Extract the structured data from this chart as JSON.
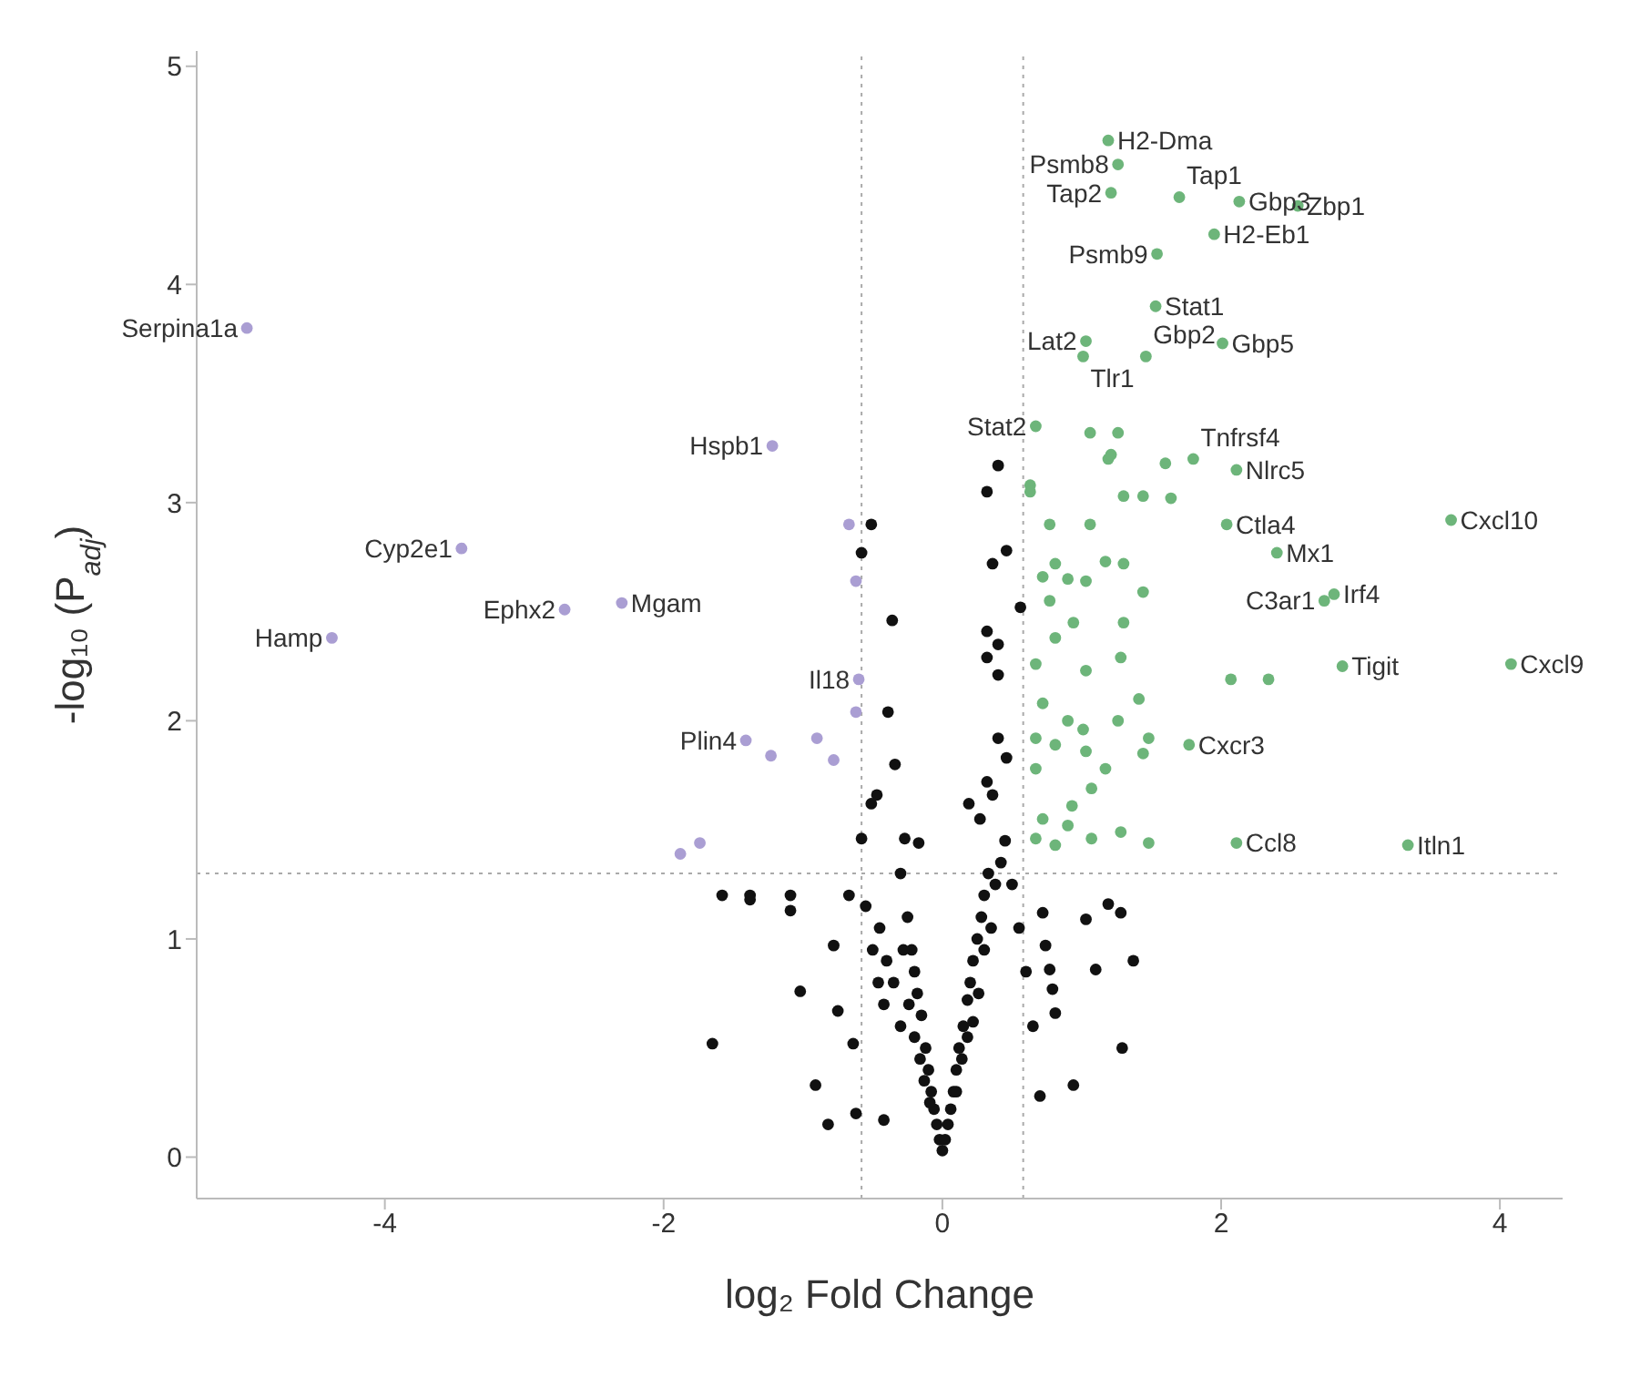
{
  "chart_data": {
    "type": "scatter",
    "xlabel": "log₂ Fold Change",
    "ylabel": "-log₁₀ (P$_{adj}$)",
    "xlim": [
      -5.35,
      4.45
    ],
    "ylim": [
      -0.19,
      5.07
    ],
    "xticks": [
      -4,
      -2,
      0,
      2,
      4
    ],
    "yticks": [
      0,
      1,
      2,
      3,
      4,
      5
    ],
    "grid": false,
    "legend": false,
    "marker": "circle",
    "ref_lines": [
      {
        "axis": "x",
        "value": -0.58,
        "color": "#aaaaaa",
        "line_style": "dotted"
      },
      {
        "axis": "x",
        "value": 0.58,
        "color": "#aaaaaa",
        "line_style": "dotted"
      },
      {
        "axis": "y",
        "value": 1.3,
        "color": "#aaaaaa",
        "line_style": "dotted"
      }
    ],
    "series": [
      {
        "color": "#111111",
        "x": [
          0.4,
          0.32,
          -0.51,
          -0.58,
          0.46,
          0.36,
          -0.36,
          0.32,
          0.4,
          0.56,
          0.32,
          0.4,
          -0.39,
          -0.34,
          -0.47,
          -0.51,
          0.32,
          0.36,
          0.4,
          0.46,
          0.19,
          0.27,
          -0.58,
          -0.27,
          -0.17,
          -1.38,
          -1.09,
          -1.09,
          -1.02,
          -0.91,
          -0.82,
          1.29,
          1.37,
          1.28,
          1.19,
          1.1,
          0.94,
          0.7,
          0.81,
          0.79,
          0.77,
          0.74,
          0.72,
          1.03,
          -0.78,
          -0.75,
          -0.64,
          -0.62,
          -0.42,
          -0.67,
          -1.65,
          -1.58,
          -1.38,
          -0.3,
          -0.25,
          -0.22,
          -0.2,
          -0.18,
          -0.15,
          -0.12,
          -0.1,
          -0.08,
          -0.06,
          -0.04,
          -0.02,
          0.0,
          0.02,
          0.04,
          0.06,
          0.08,
          0.1,
          0.12,
          0.15,
          0.18,
          0.2,
          0.22,
          0.25,
          0.28,
          0.3,
          0.33,
          -0.45,
          -0.4,
          -0.35,
          -0.3,
          -0.28,
          -0.24,
          -0.2,
          -0.16,
          -0.13,
          -0.09,
          0.1,
          0.14,
          0.18,
          0.22,
          0.26,
          0.3,
          0.35,
          0.38,
          0.42,
          0.45,
          -0.55,
          -0.5,
          -0.46,
          -0.42,
          0.5,
          0.55,
          0.6,
          0.65
        ],
        "values": [
          3.17,
          3.05,
          2.9,
          2.77,
          2.78,
          2.72,
          2.46,
          2.41,
          2.35,
          2.52,
          2.29,
          2.21,
          2.04,
          1.8,
          1.66,
          1.62,
          1.72,
          1.66,
          1.92,
          1.83,
          1.62,
          1.55,
          1.46,
          1.46,
          1.44,
          1.2,
          1.2,
          1.13,
          0.76,
          0.33,
          0.15,
          0.5,
          0.9,
          1.12,
          1.16,
          0.86,
          0.33,
          0.28,
          0.66,
          0.77,
          0.86,
          0.97,
          1.12,
          1.09,
          0.97,
          0.67,
          0.52,
          0.2,
          0.17,
          1.2,
          0.52,
          1.2,
          1.18,
          1.3,
          1.1,
          0.95,
          0.85,
          0.75,
          0.65,
          0.5,
          0.4,
          0.3,
          0.22,
          0.15,
          0.08,
          0.03,
          0.08,
          0.15,
          0.22,
          0.3,
          0.4,
          0.5,
          0.6,
          0.72,
          0.8,
          0.9,
          1.0,
          1.1,
          1.2,
          1.3,
          1.05,
          0.9,
          0.8,
          0.6,
          0.95,
          0.7,
          0.55,
          0.45,
          0.35,
          0.25,
          0.3,
          0.45,
          0.55,
          0.62,
          0.75,
          0.95,
          1.05,
          1.25,
          1.35,
          1.45,
          1.15,
          0.95,
          0.8,
          0.7,
          1.25,
          1.05,
          0.85,
          0.6
        ]
      },
      {
        "color": "#aa9ed3",
        "x": [
          -4.99,
          -1.22,
          -3.45,
          -2.3,
          -2.71,
          -4.38,
          -0.6,
          -1.41,
          -1.23,
          -0.9,
          -0.78,
          -0.67,
          -0.62,
          -1.74,
          -1.88,
          -0.62
        ],
        "values": [
          3.8,
          3.26,
          2.79,
          2.54,
          2.51,
          2.38,
          2.19,
          1.91,
          1.84,
          1.92,
          1.82,
          2.9,
          2.64,
          1.44,
          1.39,
          2.04
        ]
      },
      {
        "color": "#6db57a",
        "x": [
          1.19,
          1.26,
          1.7,
          2.13,
          2.55,
          1.21,
          1.95,
          1.54,
          1.53,
          1.03,
          2.01,
          1.01,
          1.46,
          0.67,
          1.8,
          2.11,
          2.04,
          2.4,
          3.65,
          2.81,
          2.74,
          2.87,
          4.08,
          1.77,
          2.11,
          3.34,
          2.07,
          2.34,
          0.77,
          1.06,
          0.81,
          0.72,
          0.9,
          1.03,
          1.17,
          1.3,
          1.44,
          0.77,
          0.94,
          1.3,
          0.81,
          0.67,
          1.03,
          1.28,
          1.41,
          0.72,
          0.9,
          1.01,
          1.26,
          0.67,
          0.81,
          1.03,
          1.48,
          1.44,
          1.17,
          0.67,
          1.07,
          0.93,
          0.72,
          0.9,
          0.67,
          1.07,
          1.28,
          1.48,
          0.81,
          1.06,
          1.26,
          1.19,
          1.6,
          0.63,
          1.3,
          1.44,
          1.64,
          1.21,
          0.63
        ],
        "values": [
          4.66,
          4.55,
          4.4,
          4.38,
          4.36,
          4.42,
          4.23,
          4.14,
          3.9,
          3.74,
          3.73,
          3.67,
          3.67,
          3.35,
          3.2,
          3.15,
          2.9,
          2.77,
          2.92,
          2.58,
          2.55,
          2.25,
          2.26,
          1.89,
          1.44,
          1.43,
          2.19,
          2.19,
          2.9,
          2.9,
          2.72,
          2.66,
          2.65,
          2.64,
          2.73,
          2.72,
          2.59,
          2.55,
          2.45,
          2.45,
          2.38,
          2.26,
          2.23,
          2.29,
          2.1,
          2.08,
          2.0,
          1.96,
          2.0,
          1.92,
          1.89,
          1.86,
          1.92,
          1.85,
          1.78,
          1.78,
          1.69,
          1.61,
          1.55,
          1.52,
          1.46,
          1.46,
          1.49,
          1.44,
          1.43,
          3.32,
          3.32,
          3.2,
          3.18,
          3.08,
          3.03,
          3.03,
          3.02,
          3.22,
          3.05
        ]
      }
    ],
    "annotations": [
      {
        "text": "H2-Dma",
        "x": 1.19,
        "y": 4.66
      },
      {
        "text": "Psmb8",
        "x": 1.26,
        "y": 4.55
      },
      {
        "text": "Tap1",
        "x": 1.7,
        "y": 4.4
      },
      {
        "text": "Gbp3",
        "x": 2.13,
        "y": 4.38
      },
      {
        "text": "Zbp1",
        "x": 2.55,
        "y": 4.36
      },
      {
        "text": "Tap2",
        "x": 1.21,
        "y": 4.42
      },
      {
        "text": "H2-Eb1",
        "x": 1.95,
        "y": 4.23
      },
      {
        "text": "Psmb9",
        "x": 1.54,
        "y": 4.14
      },
      {
        "text": "Stat1",
        "x": 1.53,
        "y": 3.9
      },
      {
        "text": "Lat2",
        "x": 1.03,
        "y": 3.74
      },
      {
        "text": "Gbp5",
        "x": 2.01,
        "y": 3.73
      },
      {
        "text": "Tlr1",
        "x": 1.01,
        "y": 3.67
      },
      {
        "text": "Gbp2",
        "x": 1.46,
        "y": 3.67
      },
      {
        "text": "Stat2",
        "x": 0.67,
        "y": 3.35
      },
      {
        "text": "Tnfrsf4",
        "x": 1.8,
        "y": 3.2
      },
      {
        "text": "Nlrc5",
        "x": 2.11,
        "y": 3.15
      },
      {
        "text": "Ctla4",
        "x": 2.04,
        "y": 2.9
      },
      {
        "text": "Mx1",
        "x": 2.4,
        "y": 2.77
      },
      {
        "text": "Cxcl10",
        "x": 3.65,
        "y": 2.92
      },
      {
        "text": "Irf4",
        "x": 2.81,
        "y": 2.58
      },
      {
        "text": "C3ar1",
        "x": 2.74,
        "y": 2.55
      },
      {
        "text": "Tigit",
        "x": 2.87,
        "y": 2.25
      },
      {
        "text": "Cxcl9",
        "x": 4.08,
        "y": 2.26
      },
      {
        "text": "Cxcr3",
        "x": 1.77,
        "y": 1.89
      },
      {
        "text": "Ccl8",
        "x": 2.11,
        "y": 1.44
      },
      {
        "text": "Itln1",
        "x": 3.34,
        "y": 1.43
      },
      {
        "text": "Serpina1a",
        "x": -4.99,
        "y": 3.8
      },
      {
        "text": "Hspb1",
        "x": -1.22,
        "y": 3.26
      },
      {
        "text": "Cyp2e1",
        "x": -3.45,
        "y": 2.79
      },
      {
        "text": "Mgam",
        "x": -2.3,
        "y": 2.54
      },
      {
        "text": "Ephx2",
        "x": -2.71,
        "y": 2.51
      },
      {
        "text": "Hamp",
        "x": -4.38,
        "y": 2.38
      },
      {
        "text": "Il18",
        "x": -0.6,
        "y": 2.19
      },
      {
        "text": "Plin4",
        "x": -1.41,
        "y": 1.91
      }
    ]
  }
}
